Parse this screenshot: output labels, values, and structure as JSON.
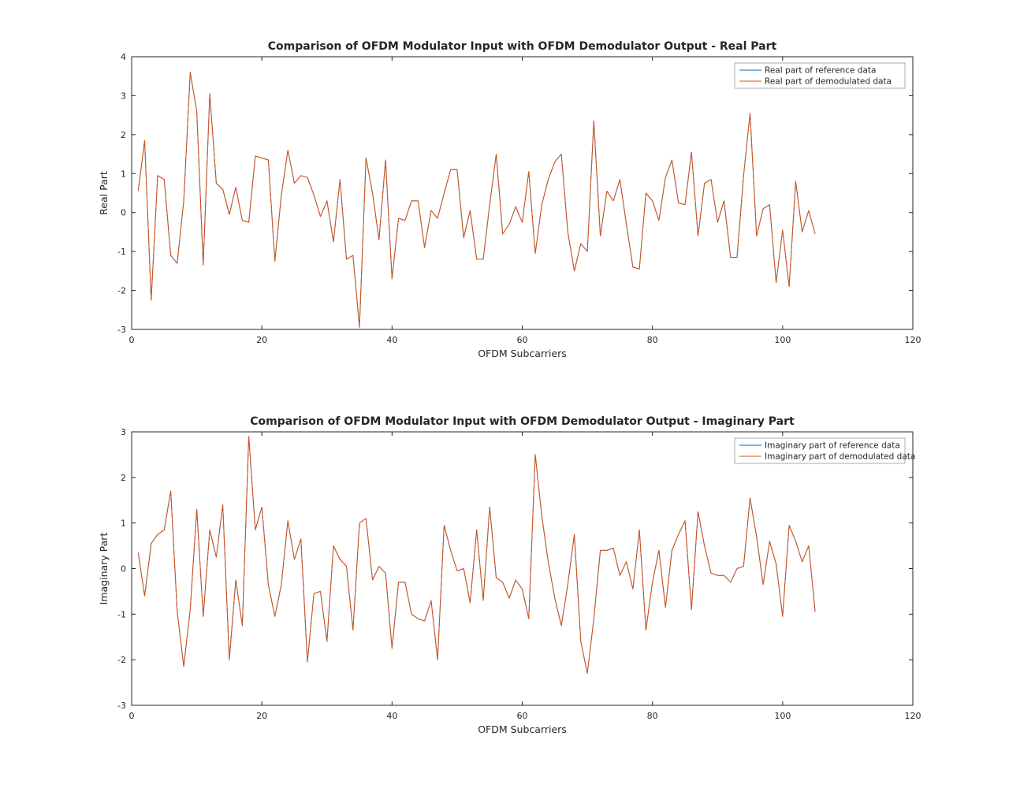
{
  "figure": {
    "background": "#ffffff",
    "axis_color": "#262626",
    "legend_border_color": "#999999",
    "reference_color": "#0072BD",
    "demodulated_color": "#D95319"
  },
  "chart_data": [
    {
      "id": "real-part",
      "type": "line",
      "title": "Comparison of OFDM Modulator Input with OFDM Demodulator Output - Real Part",
      "xlabel": "OFDM Subcarriers",
      "ylabel": "Real Part",
      "xlim": [
        0,
        120
      ],
      "ylim": [
        -3,
        4
      ],
      "xticks": [
        0,
        20,
        40,
        60,
        80,
        100,
        120
      ],
      "yticks": [
        -3,
        -2,
        -1,
        0,
        1,
        2,
        3,
        4
      ],
      "grid": false,
      "legend_position": "northeast",
      "x_start": 1,
      "series": [
        {
          "name": "Real part of reference data",
          "color": "#0072BD",
          "values": [
            0.55,
            1.85,
            -2.25,
            0.95,
            0.85,
            -1.1,
            -1.3,
            0.3,
            3.6,
            2.6,
            -1.35,
            3.05,
            0.75,
            0.6,
            -0.05,
            0.65,
            -0.2,
            -0.25,
            1.45,
            1.4,
            1.35,
            -1.25,
            0.45,
            1.6,
            0.75,
            0.95,
            0.9,
            0.45,
            -0.1,
            0.3,
            -0.75,
            0.85,
            -1.2,
            -1.1,
            -2.95,
            1.4,
            0.5,
            -0.7,
            1.35,
            -1.7,
            -0.15,
            -0.2,
            0.3,
            0.3,
            -0.9,
            0.05,
            -0.15,
            0.5,
            1.1,
            1.1,
            -0.65,
            0.05,
            -1.2,
            -1.2,
            0.2,
            1.5,
            -0.55,
            -0.3,
            0.15,
            -0.25,
            1.05,
            -1.05,
            0.2,
            0.85,
            1.3,
            1.5,
            -0.5,
            -1.5,
            -0.8,
            -1.0,
            2.35,
            -0.6,
            0.55,
            0.3,
            0.85,
            -0.3,
            -1.4,
            -1.45,
            0.5,
            0.3,
            -0.2,
            0.9,
            1.35,
            0.25,
            0.2,
            1.55,
            -0.6,
            0.75,
            0.85,
            -0.25,
            0.3,
            -1.15,
            -1.15,
            0.95,
            2.55,
            -0.6,
            0.1,
            0.2,
            -1.8,
            -0.45,
            -1.9,
            0.8,
            -0.5,
            0.05,
            -0.55
          ]
        },
        {
          "name": "Real part of demodulated data",
          "color": "#D95319",
          "values": [
            0.55,
            1.85,
            -2.25,
            0.95,
            0.85,
            -1.1,
            -1.3,
            0.3,
            3.6,
            2.6,
            -1.35,
            3.05,
            0.75,
            0.6,
            -0.05,
            0.65,
            -0.2,
            -0.25,
            1.45,
            1.4,
            1.35,
            -1.25,
            0.45,
            1.6,
            0.75,
            0.95,
            0.9,
            0.45,
            -0.1,
            0.3,
            -0.75,
            0.85,
            -1.2,
            -1.1,
            -2.95,
            1.4,
            0.5,
            -0.7,
            1.35,
            -1.7,
            -0.15,
            -0.2,
            0.3,
            0.3,
            -0.9,
            0.05,
            -0.15,
            0.5,
            1.1,
            1.1,
            -0.65,
            0.05,
            -1.2,
            -1.2,
            0.2,
            1.5,
            -0.55,
            -0.3,
            0.15,
            -0.25,
            1.05,
            -1.05,
            0.2,
            0.85,
            1.3,
            1.5,
            -0.5,
            -1.5,
            -0.8,
            -1.0,
            2.35,
            -0.6,
            0.55,
            0.3,
            0.85,
            -0.3,
            -1.4,
            -1.45,
            0.5,
            0.3,
            -0.2,
            0.9,
            1.35,
            0.25,
            0.2,
            1.55,
            -0.6,
            0.75,
            0.85,
            -0.25,
            0.3,
            -1.15,
            -1.15,
            0.95,
            2.55,
            -0.6,
            0.1,
            0.2,
            -1.8,
            -0.45,
            -1.9,
            0.8,
            -0.5,
            0.05,
            -0.55
          ]
        }
      ]
    },
    {
      "id": "imaginary-part",
      "type": "line",
      "title": "Comparison of OFDM Modulator Input with OFDM Demodulator Output - Imaginary Part",
      "xlabel": "OFDM Subcarriers",
      "ylabel": "Imaginary Part",
      "xlim": [
        0,
        120
      ],
      "ylim": [
        -3,
        3
      ],
      "xticks": [
        0,
        20,
        40,
        60,
        80,
        100,
        120
      ],
      "yticks": [
        -3,
        -2,
        -1,
        0,
        1,
        2,
        3
      ],
      "grid": false,
      "legend_position": "northeast",
      "x_start": 1,
      "series": [
        {
          "name": "Imaginary part of reference data",
          "color": "#0072BD",
          "values": [
            0.35,
            -0.6,
            0.55,
            0.75,
            0.85,
            1.7,
            -0.95,
            -2.15,
            -0.9,
            1.3,
            -1.05,
            0.85,
            0.25,
            1.4,
            -2.0,
            -0.25,
            -1.25,
            2.9,
            0.85,
            1.35,
            -0.35,
            -1.05,
            -0.35,
            1.05,
            0.2,
            0.65,
            -2.05,
            -0.55,
            -0.5,
            -1.6,
            0.5,
            0.2,
            0.05,
            -1.35,
            1.0,
            1.1,
            -0.25,
            0.05,
            -0.1,
            -1.75,
            -0.3,
            -0.3,
            -1.0,
            -1.1,
            -1.15,
            -0.7,
            -2.0,
            0.95,
            0.4,
            -0.05,
            0.0,
            -0.75,
            0.85,
            -0.7,
            1.35,
            -0.2,
            -0.3,
            -0.65,
            -0.25,
            -0.45,
            -1.1,
            2.5,
            1.15,
            0.15,
            -0.65,
            -1.25,
            -0.35,
            0.75,
            -1.6,
            -2.3,
            -1.1,
            0.4,
            0.4,
            0.45,
            -0.15,
            0.15,
            -0.45,
            0.85,
            -1.35,
            -0.3,
            0.4,
            -0.85,
            0.4,
            0.75,
            1.05,
            -0.9,
            1.25,
            0.5,
            -0.1,
            -0.15,
            -0.15,
            -0.3,
            0.0,
            0.05,
            1.55,
            0.7,
            -0.35,
            0.6,
            0.1,
            -1.05,
            0.95,
            0.6,
            0.15,
            0.5,
            -0.95
          ]
        },
        {
          "name": "Imaginary part of demodulated data",
          "color": "#D95319",
          "values": [
            0.35,
            -0.6,
            0.55,
            0.75,
            0.85,
            1.7,
            -0.95,
            -2.15,
            -0.9,
            1.3,
            -1.05,
            0.85,
            0.25,
            1.4,
            -2.0,
            -0.25,
            -1.25,
            2.9,
            0.85,
            1.35,
            -0.35,
            -1.05,
            -0.35,
            1.05,
            0.2,
            0.65,
            -2.05,
            -0.55,
            -0.5,
            -1.6,
            0.5,
            0.2,
            0.05,
            -1.35,
            1.0,
            1.1,
            -0.25,
            0.05,
            -0.1,
            -1.75,
            -0.3,
            -0.3,
            -1.0,
            -1.1,
            -1.15,
            -0.7,
            -2.0,
            0.95,
            0.4,
            -0.05,
            0.0,
            -0.75,
            0.85,
            -0.7,
            1.35,
            -0.2,
            -0.3,
            -0.65,
            -0.25,
            -0.45,
            -1.1,
            2.5,
            1.15,
            0.15,
            -0.65,
            -1.25,
            -0.35,
            0.75,
            -1.6,
            -2.3,
            -1.1,
            0.4,
            0.4,
            0.45,
            -0.15,
            0.15,
            -0.45,
            0.85,
            -1.35,
            -0.3,
            0.4,
            -0.85,
            0.4,
            0.75,
            1.05,
            -0.9,
            1.25,
            0.5,
            -0.1,
            -0.15,
            -0.15,
            -0.3,
            0.0,
            0.05,
            1.55,
            0.7,
            -0.35,
            0.6,
            0.1,
            -1.05,
            0.95,
            0.6,
            0.15,
            0.5,
            -0.95
          ]
        }
      ]
    }
  ]
}
